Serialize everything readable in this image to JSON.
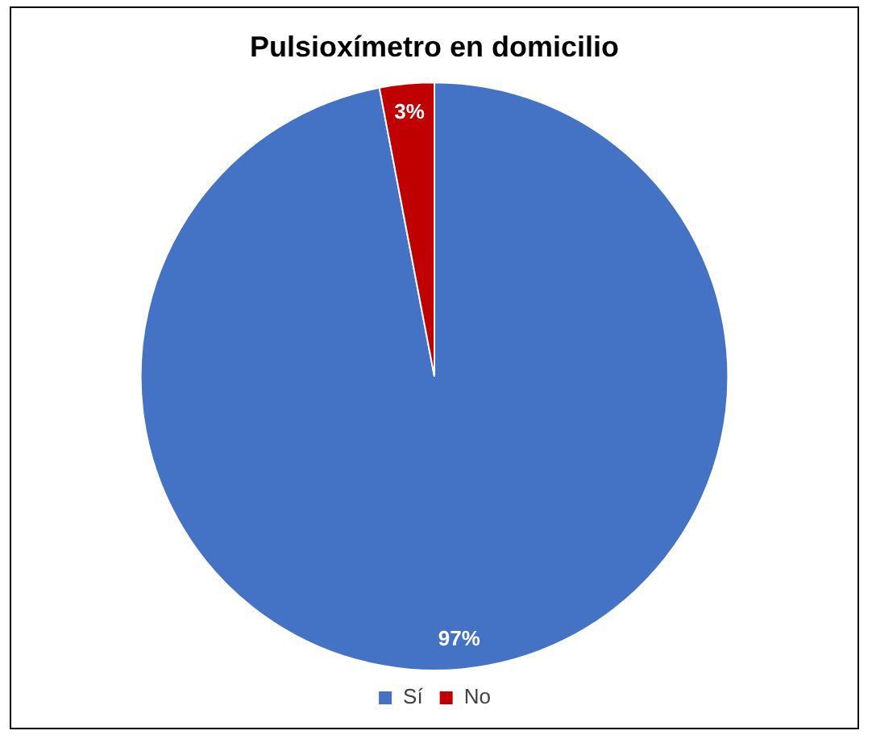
{
  "chart_data": {
    "type": "pie",
    "title": "Pulsioxímetro en domicilio",
    "categories": [
      "Sí",
      "No"
    ],
    "values": [
      97,
      3
    ],
    "colors": [
      "#4472c4",
      "#c00000"
    ],
    "value_labels": [
      "97%",
      "3%"
    ],
    "legend": "bottom"
  }
}
